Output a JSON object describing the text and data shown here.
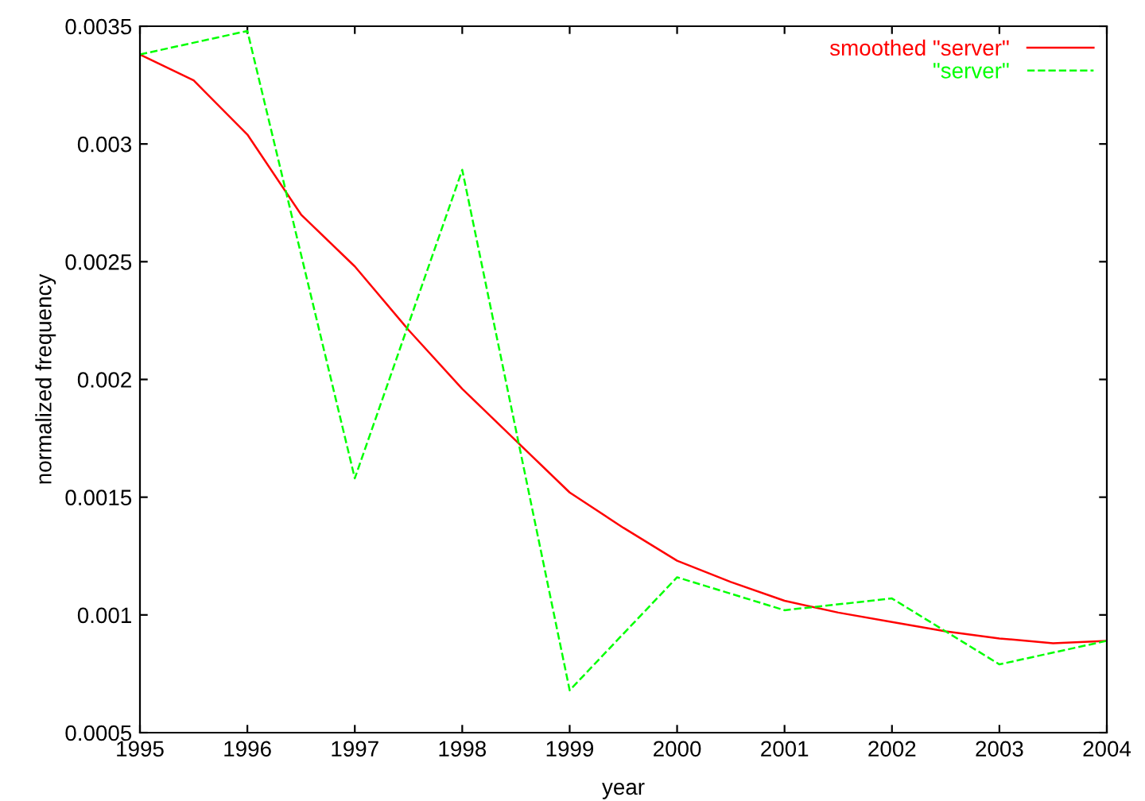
{
  "chart_data": {
    "type": "line",
    "xlabel": "year",
    "ylabel": "normalized frequency",
    "series": [
      {
        "name": "smoothed \"server\"",
        "color": "#ff0000",
        "line_style": "solid",
        "x": [
          1995,
          1995.5,
          1996,
          1996.5,
          1997,
          1997.5,
          1998,
          1998.5,
          1999,
          1999.5,
          2000,
          2000.5,
          2001,
          2001.5,
          2002,
          2002.5,
          2003,
          2003.5,
          2004
        ],
        "values": [
          0.00338,
          0.00327,
          0.00304,
          0.0027,
          0.00248,
          0.00221,
          0.00196,
          0.00174,
          0.00152,
          0.00137,
          0.00123,
          0.00114,
          0.00106,
          0.00101,
          0.00097,
          0.00093,
          0.0009,
          0.00088,
          0.00089
        ]
      },
      {
        "name": "\"server\"",
        "color": "#00ff00",
        "line_style": "dashed",
        "x": [
          1995,
          1996,
          1997,
          1998,
          1999,
          2000,
          2001,
          2002,
          2003,
          2004
        ],
        "values": [
          0.00338,
          0.00348,
          0.00158,
          0.00289,
          0.00068,
          0.00116,
          0.00102,
          0.00107,
          0.00079,
          0.00089
        ]
      }
    ],
    "xlim": [
      1995,
      2004
    ],
    "xticks": [
      1995,
      1996,
      1997,
      1998,
      1999,
      2000,
      2001,
      2002,
      2003,
      2004
    ],
    "ylim": [
      0.0005,
      0.0035
    ],
    "yticks": [
      0.0005,
      0.001,
      0.0015,
      0.002,
      0.0025,
      0.003,
      0.0035
    ],
    "grid": false,
    "legend": "top right",
    "marker": "none"
  }
}
